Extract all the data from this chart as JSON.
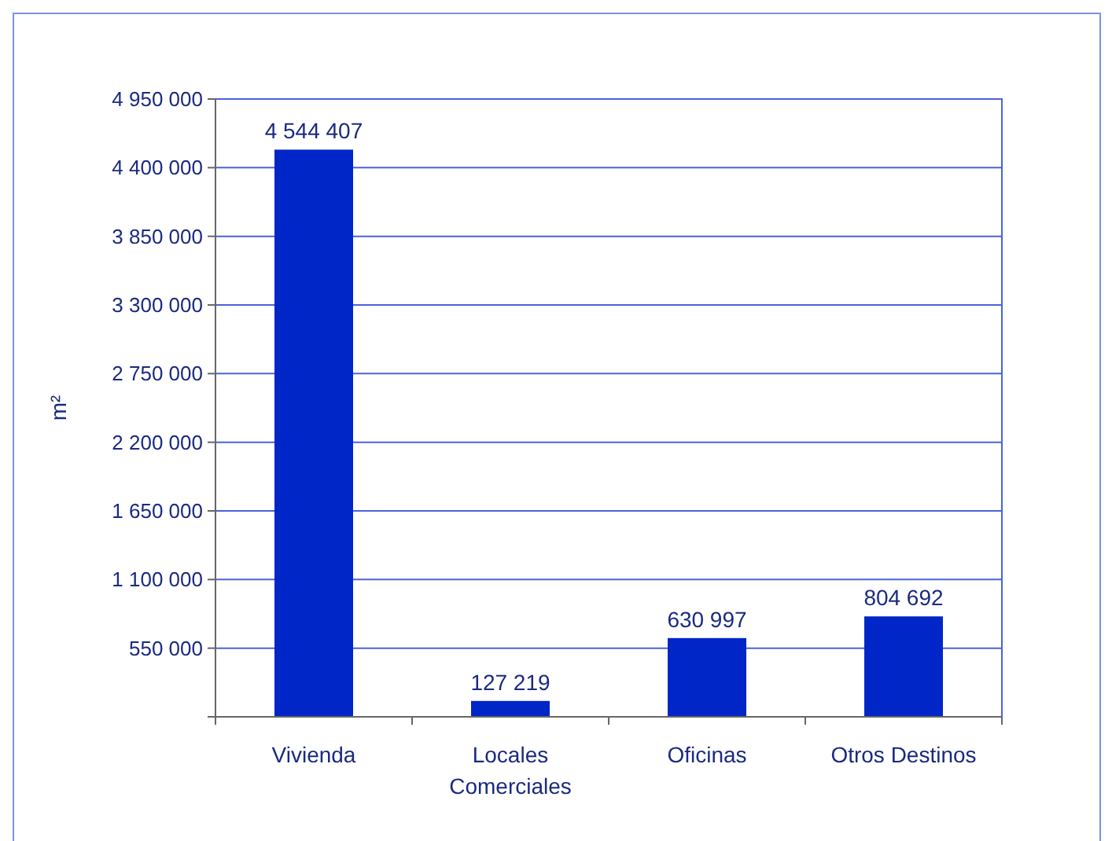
{
  "chart_data": {
    "type": "bar",
    "ylabel": "m²",
    "categories": [
      "Vivienda",
      "Locales Comerciales",
      "Oficinas",
      "Otros Destinos"
    ],
    "values": [
      4544407,
      127219,
      630997,
      804692
    ],
    "value_labels": [
      "4 544 407",
      "127 219",
      "630 997",
      "804 692"
    ],
    "color": "#0026c8",
    "ylim": [
      0,
      4950000
    ],
    "yticks": [
      {
        "value": 0,
        "label": null
      },
      {
        "value": 550000,
        "label": "550 000"
      },
      {
        "value": 1100000,
        "label": "1 100 000"
      },
      {
        "value": 1650000,
        "label": "1 650 000"
      },
      {
        "value": 2200000,
        "label": "2 200 000"
      },
      {
        "value": 2750000,
        "label": "2 750 000"
      },
      {
        "value": 3300000,
        "label": "3 300 000"
      },
      {
        "value": 3850000,
        "label": "3 850 000"
      },
      {
        "value": 4400000,
        "label": "4 400 000"
      },
      {
        "value": 4950000,
        "label": "4 950 000"
      }
    ],
    "grid": "y"
  }
}
